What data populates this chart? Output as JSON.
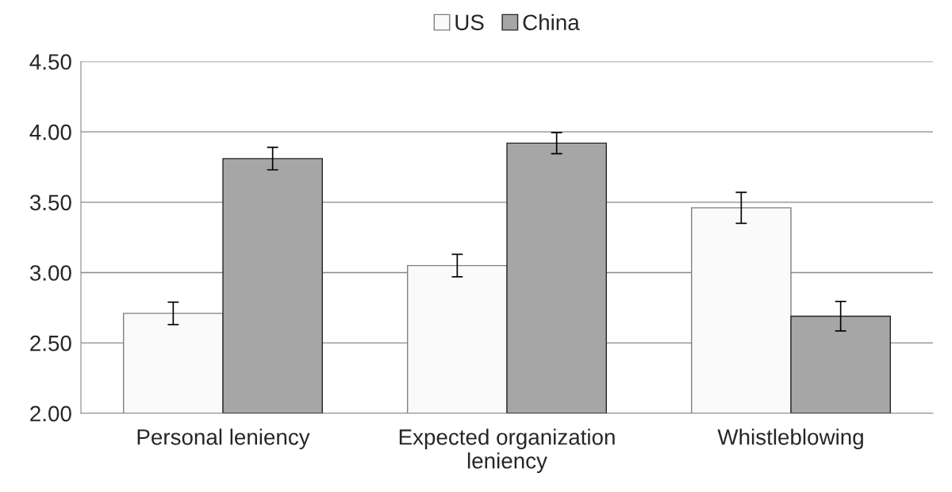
{
  "chart_data": {
    "type": "bar",
    "categories": [
      "Personal leniency",
      "Expected organization\nleniency",
      "Whistleblowing"
    ],
    "series": [
      {
        "name": "US",
        "color": "#fafafa",
        "values": [
          2.71,
          3.05,
          3.46
        ],
        "errors": [
          0.08,
          0.08,
          0.11
        ]
      },
      {
        "name": "China",
        "color": "#a6a6a6",
        "values": [
          3.81,
          3.92,
          2.69
        ],
        "errors": [
          0.08,
          0.075,
          0.105
        ]
      }
    ],
    "ylim": [
      2.0,
      4.5
    ],
    "yticks": [
      {
        "value": 2.0,
        "label": "2.00"
      },
      {
        "value": 2.5,
        "label": "2.50"
      },
      {
        "value": 3.0,
        "label": "3.00"
      },
      {
        "value": 3.5,
        "label": "3.50"
      },
      {
        "value": 4.0,
        "label": "4.00"
      },
      {
        "value": 4.5,
        "label": "4.50"
      }
    ],
    "grid": "y",
    "legend": "top"
  }
}
